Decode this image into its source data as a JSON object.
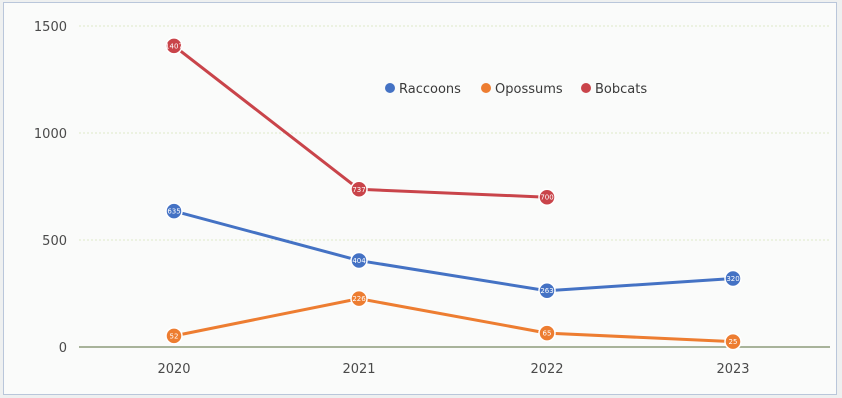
{
  "chart_data": {
    "type": "line",
    "categories": [
      "2020",
      "2021",
      "2022",
      "2023"
    ],
    "series": [
      {
        "name": "Raccoons",
        "color": "#4472c4",
        "values": [
          635,
          404,
          263,
          320
        ],
        "labels": [
          "635",
          "404",
          "263",
          "320"
        ]
      },
      {
        "name": "Opossums",
        "color": "#ed7d31",
        "values": [
          52,
          226,
          65,
          25
        ],
        "labels": [
          "52",
          "226",
          "65",
          "25"
        ]
      },
      {
        "name": "Bobcats",
        "color": "#c9444a",
        "values": [
          1407,
          737,
          700,
          null
        ],
        "labels": [
          "1407",
          "737",
          "700",
          ""
        ]
      }
    ],
    "y_ticks": [
      "0",
      "500",
      "1000",
      "1500"
    ],
    "ylim": [
      0,
      1500
    ],
    "grid": true,
    "legend_position": "top-center"
  }
}
